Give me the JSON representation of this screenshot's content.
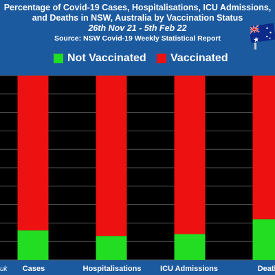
{
  "chart_data": {
    "type": "bar",
    "stacked": true,
    "title": "Percentage of Covid-19 Cases, Hospitalisations, ICU Admissions,",
    "title_line2": "and Deaths in NSW, Australia by Vaccination Status",
    "subtitle": "26th Nov 21 - 5th Feb 22",
    "source": "Source: NSW Covid-19 Weekly Statistical Report",
    "categories": [
      "Cases",
      "Hospitalisations",
      "ICU Admissions",
      "Deaths"
    ],
    "category_labels": [
      "Cases",
      "Hospitalisations",
      "ICU Admissions",
      "Death"
    ],
    "series": [
      {
        "name": "Not Vaccinated",
        "color": "#22dd22",
        "values": [
          16,
          13,
          14,
          22
        ]
      },
      {
        "name": "Vaccinated",
        "color": "#ee1111",
        "values": [
          84,
          87,
          86,
          78
        ]
      }
    ],
    "ylim": [
      0,
      100
    ],
    "grid": true,
    "legend_position": "top"
  },
  "credit": "uk",
  "flag_icon": "australian-flag-icon"
}
